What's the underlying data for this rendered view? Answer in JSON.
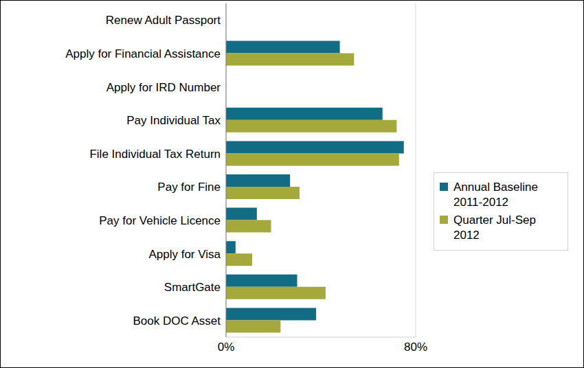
{
  "chart_data": {
    "type": "bar",
    "orientation": "horizontal",
    "categories": [
      "Renew Adult Passport",
      "Apply for Financial Assistance",
      "Apply for IRD Number",
      "Pay Individual Tax",
      "File Individual Tax Return",
      "Pay for Fine ",
      "Pay for Vehicle Licence",
      "Apply for Visa",
      "SmartGate",
      "Book DOC Asset"
    ],
    "series": [
      {
        "name": "Annual Baseline 2011-2012",
        "color": "#126c84",
        "values": [
          null,
          48,
          null,
          66,
          75,
          27,
          13,
          4,
          30,
          38
        ]
      },
      {
        "name": "Quarter Jul-Sep 2012",
        "color": "#a5a83b",
        "values": [
          null,
          54,
          null,
          72,
          73,
          31,
          19,
          11,
          42,
          23
        ]
      }
    ],
    "xlim": [
      0,
      80
    ],
    "xticks": [
      {
        "value": 0,
        "label": "0%"
      },
      {
        "value": 80,
        "label": "80%"
      }
    ],
    "grid": true,
    "legend": "right"
  }
}
